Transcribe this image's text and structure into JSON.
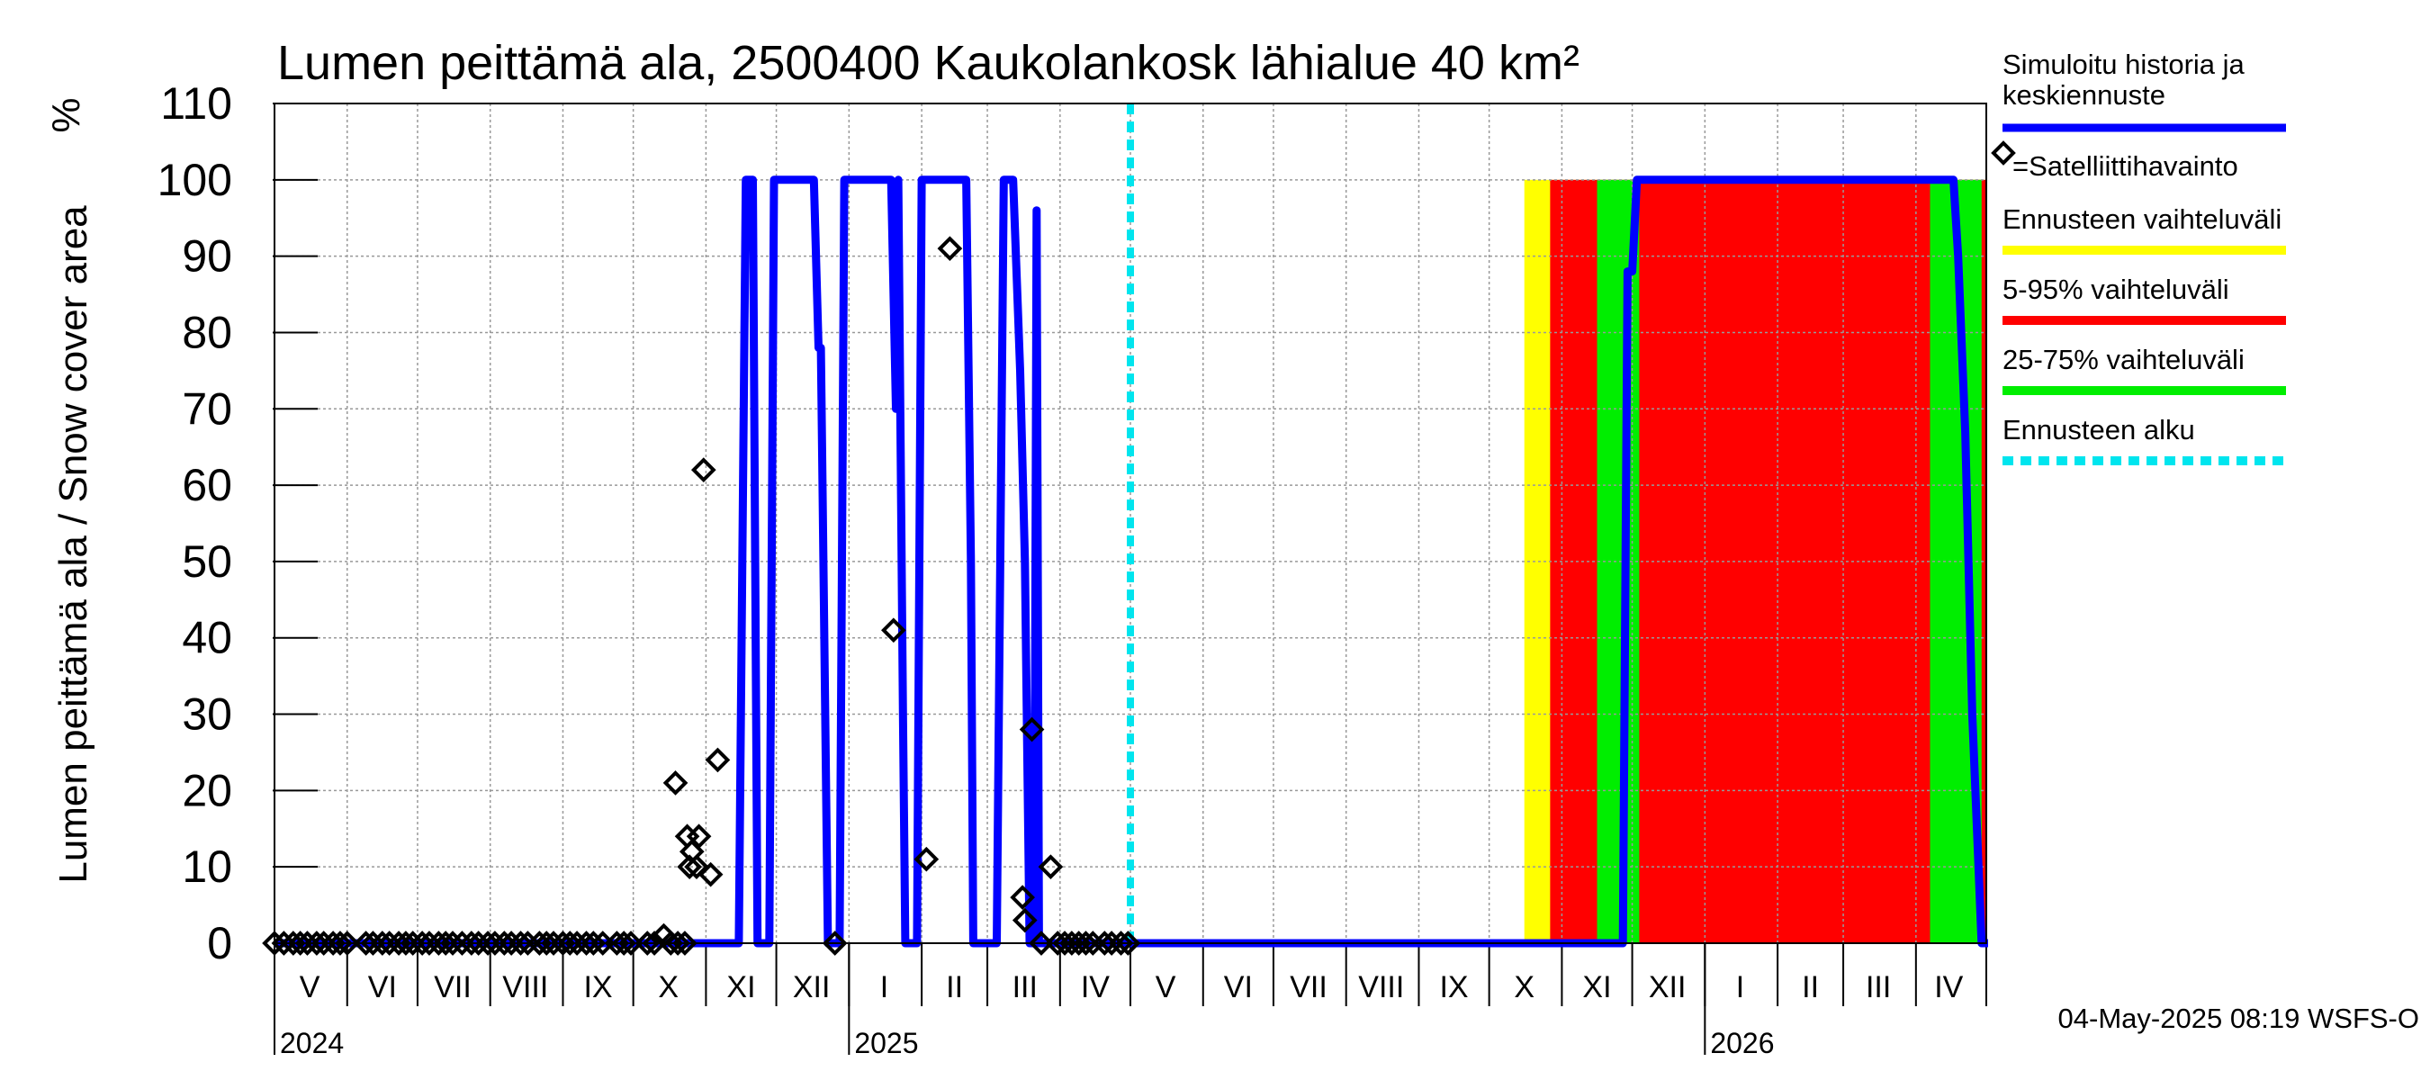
{
  "chart_data": {
    "type": "line",
    "title": "Lumen peittämä ala, 2500400 Kaukolankosk lähialue 40 km²",
    "ylabel": "Lumen peittämä ala / Snow cover area",
    "yunit": "%",
    "ylim": [
      0,
      110
    ],
    "yticks": [
      0,
      10,
      20,
      30,
      40,
      50,
      60,
      70,
      80,
      90,
      100,
      110
    ],
    "x_range_days": [
      0,
      730
    ],
    "month_labels": [
      {
        "label": "V",
        "day": 15
      },
      {
        "label": "VI",
        "day": 46
      },
      {
        "label": "VII",
        "day": 76
      },
      {
        "label": "VIII",
        "day": 107
      },
      {
        "label": "IX",
        "day": 138
      },
      {
        "label": "X",
        "day": 168
      },
      {
        "label": "XI",
        "day": 199
      },
      {
        "label": "XII",
        "day": 229
      },
      {
        "label": "I",
        "day": 260
      },
      {
        "label": "II",
        "day": 290
      },
      {
        "label": "III",
        "day": 320
      },
      {
        "label": "IV",
        "day": 350
      },
      {
        "label": "V",
        "day": 380
      },
      {
        "label": "VI",
        "day": 411
      },
      {
        "label": "VII",
        "day": 441
      },
      {
        "label": "VIII",
        "day": 472
      },
      {
        "label": "IX",
        "day": 503
      },
      {
        "label": "X",
        "day": 533
      },
      {
        "label": "XI",
        "day": 564
      },
      {
        "label": "XII",
        "day": 594
      },
      {
        "label": "I",
        "day": 625
      },
      {
        "label": "II",
        "day": 655
      },
      {
        "label": "III",
        "day": 684
      },
      {
        "label": "IV",
        "day": 714
      }
    ],
    "month_boundaries_days": [
      0,
      31,
      61,
      92,
      123,
      153,
      184,
      214,
      245,
      276,
      304,
      335,
      365,
      396,
      426,
      457,
      488,
      518,
      549,
      579,
      610,
      641,
      669,
      700,
      730
    ],
    "year_labels": [
      {
        "label": "2024",
        "day": 0
      },
      {
        "label": "2025",
        "day": 245
      },
      {
        "label": "2026",
        "day": 610
      }
    ],
    "forecast_start_day": 365,
    "series": [
      {
        "name": "Simuloitu historia ja keskiennuste",
        "color": "#0000ff",
        "points": [
          [
            0,
            0
          ],
          [
            198,
            0
          ],
          [
            201,
            100
          ],
          [
            204,
            100
          ],
          [
            206,
            0
          ],
          [
            211,
            0
          ],
          [
            213,
            100
          ],
          [
            230,
            100
          ],
          [
            232,
            78
          ],
          [
            233,
            78
          ],
          [
            236,
            0
          ],
          [
            241,
            0
          ],
          [
            243,
            100
          ],
          [
            263,
            100
          ],
          [
            265,
            70
          ],
          [
            266,
            100
          ],
          [
            268,
            30
          ],
          [
            269,
            0
          ],
          [
            274,
            0
          ],
          [
            276,
            100
          ],
          [
            295,
            100
          ],
          [
            297,
            50
          ],
          [
            298,
            0
          ],
          [
            308,
            0
          ],
          [
            311,
            100
          ],
          [
            315,
            100
          ],
          [
            318,
            75
          ],
          [
            320,
            50
          ],
          [
            322,
            0
          ],
          [
            324,
            0
          ],
          [
            325,
            96
          ],
          [
            326,
            0
          ],
          [
            575,
            0
          ],
          [
            577,
            88
          ],
          [
            579,
            88
          ],
          [
            581,
            100
          ],
          [
            716,
            100
          ],
          [
            718,
            90
          ],
          [
            721,
            67
          ],
          [
            724,
            30
          ],
          [
            728,
            0
          ],
          [
            735,
            0
          ]
        ]
      }
    ],
    "forecast_bands": [
      {
        "name": "Ennusteen vaihteluväli",
        "color": "#ffff00",
        "start_day": 533,
        "end_day": 733,
        "low": 0,
        "high": 100
      },
      {
        "name": "5-95% vaihteluväli",
        "color": "#ff0000",
        "start_day": 544,
        "end_day": 730,
        "low": 0,
        "high": 100
      },
      {
        "name": "25-75% vaihteluväli",
        "color": "#00ee00",
        "segments_days": [
          [
            564,
            582
          ],
          [
            706,
            728
          ]
        ],
        "low": 0,
        "high": 100
      }
    ],
    "satellite_observations": [
      [
        0,
        0
      ],
      [
        4,
        0
      ],
      [
        8,
        0
      ],
      [
        11,
        0
      ],
      [
        14,
        0
      ],
      [
        18,
        0
      ],
      [
        21,
        0
      ],
      [
        25,
        0
      ],
      [
        28,
        0
      ],
      [
        31,
        0
      ],
      [
        39,
        0
      ],
      [
        42,
        0
      ],
      [
        46,
        0
      ],
      [
        49,
        0
      ],
      [
        53,
        0
      ],
      [
        56,
        0
      ],
      [
        59,
        0
      ],
      [
        63,
        0
      ],
      [
        66,
        0
      ],
      [
        70,
        0
      ],
      [
        73,
        0
      ],
      [
        76,
        0
      ],
      [
        80,
        0
      ],
      [
        84,
        0
      ],
      [
        87,
        0
      ],
      [
        91,
        0
      ],
      [
        94,
        0
      ],
      [
        98,
        0
      ],
      [
        101,
        0
      ],
      [
        105,
        0
      ],
      [
        108,
        0
      ],
      [
        113,
        0
      ],
      [
        116,
        0
      ],
      [
        119,
        0
      ],
      [
        123,
        0
      ],
      [
        126,
        0
      ],
      [
        129,
        0
      ],
      [
        133,
        0
      ],
      [
        136,
        0
      ],
      [
        140,
        0
      ],
      [
        146,
        0
      ],
      [
        149,
        0
      ],
      [
        152,
        0
      ],
      [
        159,
        0
      ],
      [
        162,
        0
      ],
      [
        166,
        1
      ],
      [
        169,
        0
      ],
      [
        171,
        21
      ],
      [
        172,
        0
      ],
      [
        175,
        0
      ],
      [
        176,
        14
      ],
      [
        177,
        10
      ],
      [
        178,
        12
      ],
      [
        180,
        10
      ],
      [
        181,
        14
      ],
      [
        183,
        62
      ],
      [
        186,
        9
      ],
      [
        189,
        24
      ],
      [
        239,
        0
      ],
      [
        264,
        41
      ],
      [
        278,
        11
      ],
      [
        288,
        91
      ],
      [
        319,
        6
      ],
      [
        320,
        3
      ],
      [
        323,
        28
      ],
      [
        327,
        0
      ],
      [
        331,
        10
      ],
      [
        334,
        0
      ],
      [
        337,
        0
      ],
      [
        340,
        0
      ],
      [
        343,
        0
      ],
      [
        346,
        0
      ],
      [
        349,
        0
      ],
      [
        354,
        0
      ],
      [
        357,
        0
      ],
      [
        361,
        0
      ],
      [
        364,
        0
      ]
    ],
    "legend": [
      {
        "label": "Simuloitu historia ja keskiennuste",
        "kind": "line",
        "color": "#0000ff"
      },
      {
        "label": "=Satelliittihavainto",
        "kind": "diamond",
        "color": "#000000"
      },
      {
        "label": "Ennusteen vaihteluväli",
        "kind": "line",
        "color": "#ffff00"
      },
      {
        "label": "5-95% vaihteluväli",
        "kind": "line",
        "color": "#ff0000"
      },
      {
        "label": "25-75% vaihteluväli",
        "kind": "line",
        "color": "#00ee00"
      },
      {
        "label": "Ennusteen alku",
        "kind": "dashed",
        "color": "#00e5ee"
      }
    ],
    "legend_position": "right",
    "grid": true,
    "timestamp": "04-May-2025 08:19 WSFS-O"
  }
}
